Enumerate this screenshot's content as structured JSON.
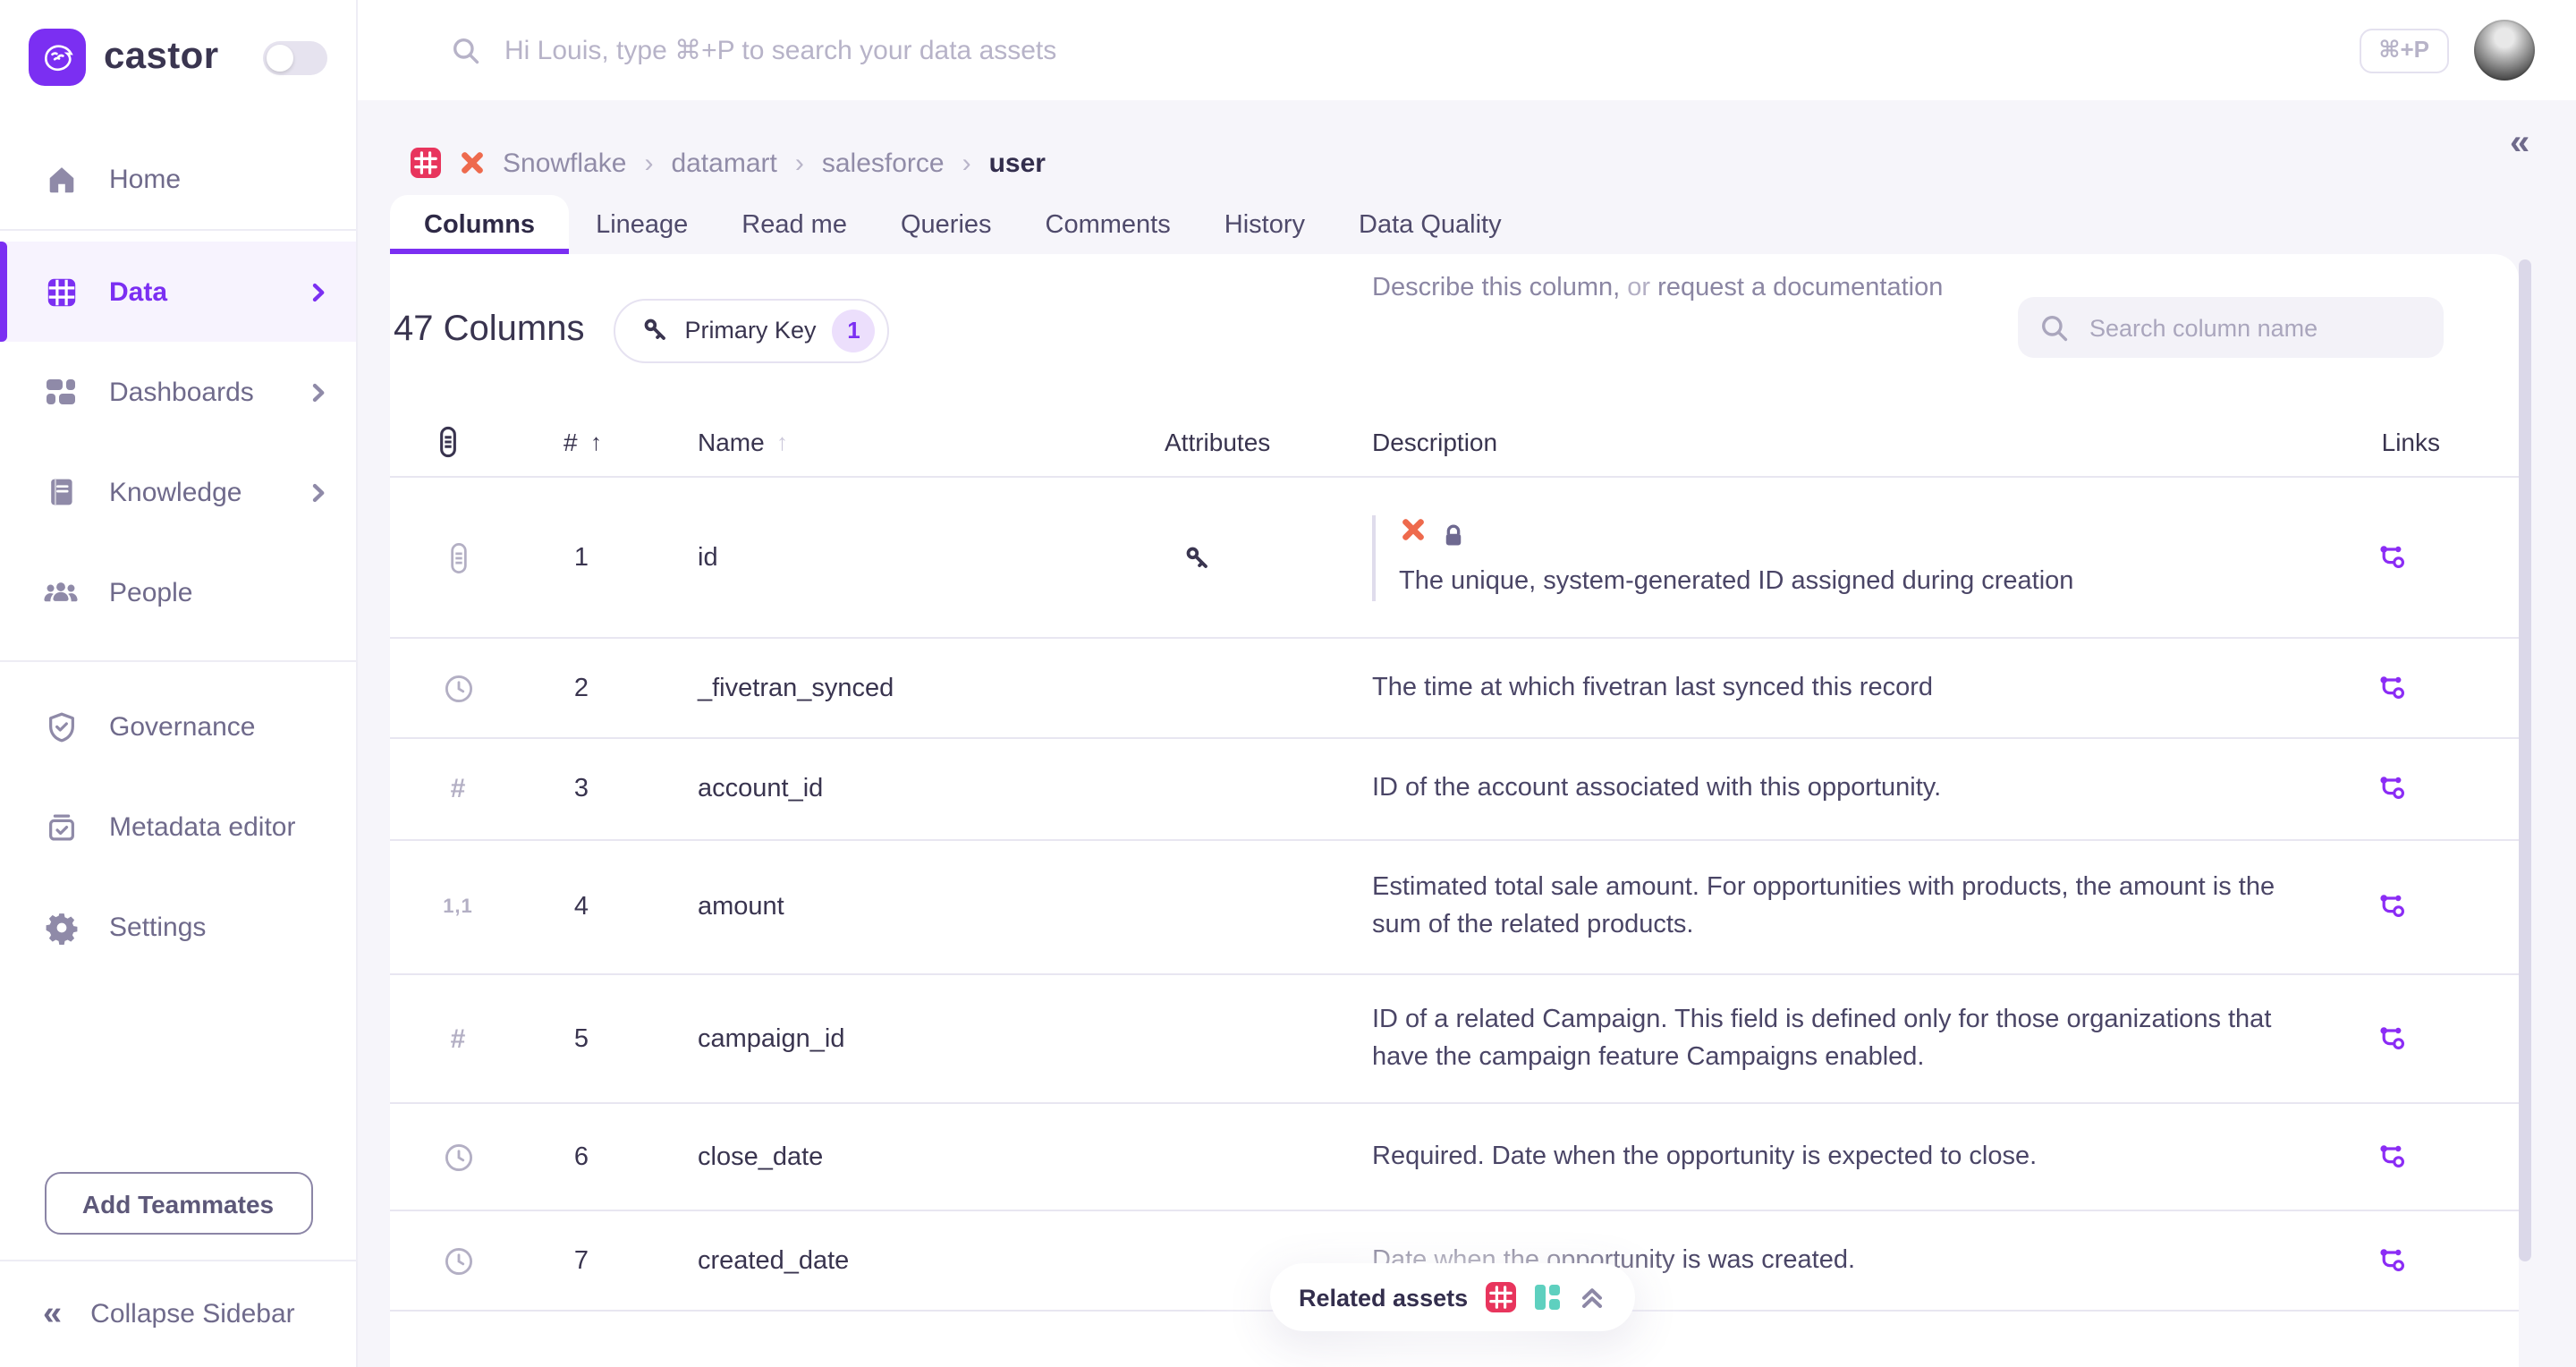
{
  "brand": {
    "name": "castor"
  },
  "topbar": {
    "search_placeholder": "Hi Louis, type ⌘+P to search your data assets",
    "shortcut_badge": "⌘+P"
  },
  "sidebar": {
    "items": [
      {
        "label": "Home",
        "icon": "home-icon",
        "active": false,
        "chevron": false
      },
      {
        "label": "Data",
        "icon": "data-grid-icon",
        "active": true,
        "chevron": true
      },
      {
        "label": "Dashboards",
        "icon": "dashboards-icon",
        "active": false,
        "chevron": true
      },
      {
        "label": "Knowledge",
        "icon": "book-icon",
        "active": false,
        "chevron": true
      },
      {
        "label": "People",
        "icon": "people-icon",
        "active": false,
        "chevron": false
      }
    ],
    "secondary_items": [
      {
        "label": "Governance",
        "icon": "shield-check-icon"
      },
      {
        "label": "Metadata editor",
        "icon": "clipboard-check-icon"
      },
      {
        "label": "Settings",
        "icon": "gear-icon"
      }
    ],
    "add_teammates_label": "Add Teammates",
    "collapse_label": "Collapse Sidebar",
    "collapse_glyph": "«"
  },
  "breadcrumb": {
    "icons": [
      "table-red-icon",
      "fivetran-icon"
    ],
    "items": [
      "Snowflake",
      "datamart",
      "salesforce"
    ],
    "separator": "›",
    "current": "user"
  },
  "tabs": [
    {
      "label": "Columns",
      "active": true
    },
    {
      "label": "Lineage",
      "active": false
    },
    {
      "label": "Read me",
      "active": false
    },
    {
      "label": "Queries",
      "active": false
    },
    {
      "label": "Comments",
      "active": false
    },
    {
      "label": "History",
      "active": false
    },
    {
      "label": "Data Quality",
      "active": false
    }
  ],
  "content": {
    "count_label": "47 Columns",
    "primary_key_filter": {
      "icon": "key-icon",
      "label": "Primary Key",
      "count": "1"
    },
    "column_search_placeholder": "Search column name"
  },
  "table": {
    "headers": {
      "hash": "#",
      "sort_arrow": "↑",
      "name": "Name",
      "attributes": "Attributes",
      "description": "Description",
      "links": "Links"
    },
    "rows": [
      {
        "num": "1",
        "name": "id",
        "type_icon": "id-type-icon",
        "attribute_icon": "key-icon",
        "description_icons": [
          "fivetran-icon",
          "lock-icon"
        ],
        "sourced": true,
        "description": "The unique, system-generated ID assigned during creation",
        "links_icon": "lineage-icon"
      },
      {
        "num": "2",
        "name": "_fivetran_synced",
        "type_icon": "clock-icon",
        "description": "The time at which fivetran last synced this record",
        "links_icon": "lineage-icon"
      },
      {
        "num": "3",
        "name": "account_id",
        "type_icon": "hash-icon",
        "description": "ID of the account associated with this opportunity.",
        "links_icon": "lineage-icon"
      },
      {
        "num": "4",
        "name": "amount",
        "type_icon": "decimal-icon",
        "description": "Estimated total sale amount. For opportunities with products, the amount is the sum of the related products.",
        "links_icon": "lineage-icon"
      },
      {
        "num": "5",
        "name": "campaign_id",
        "type_icon": "hash-icon",
        "description": "ID of a related Campaign. This field is defined only for those organizations that have the campaign feature Campaigns enabled.",
        "links_icon": "lineage-icon"
      },
      {
        "num": "6",
        "name": "close_date",
        "type_icon": "clock-icon",
        "description": "Required. Date when the opportunity is expected to close.",
        "links_icon": "lineage-icon"
      },
      {
        "num": "7",
        "name": "created_date",
        "type_icon": "clock-icon",
        "description": "Date when the opportunity is was created.",
        "links_icon": "lineage-icon"
      }
    ],
    "draft_row": {
      "placeholder_left": "Describe this column,",
      "separator": "or",
      "placeholder_link": "request a documentation"
    }
  },
  "floating": {
    "related_assets_label": "Related assets",
    "icons": [
      "table-red-icon",
      "dashboard-teal-icon",
      "chevrons-up-icon"
    ]
  },
  "colors": {
    "accent": "#7b2ff2",
    "table_icon_red": "#e8355d",
    "dashboard_icon_teal": "#5ed0bf",
    "fivetran_orange": "#ee6a4d",
    "background": "#f6f5fa"
  }
}
